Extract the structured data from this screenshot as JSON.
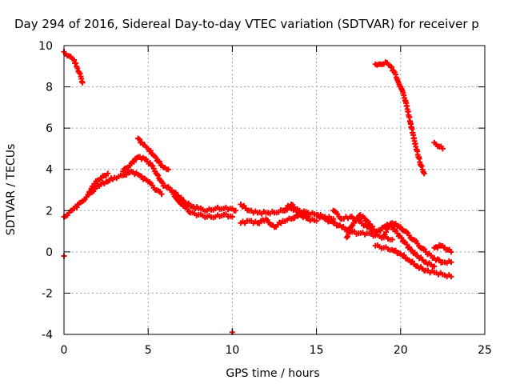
{
  "chart_data": {
    "type": "scatter",
    "title": "Day 294 of 2016, Sidereal Day-to-day VTEC variation (SDTVAR) for receiver p",
    "xlabel": "GPS time / hours",
    "ylabel": "SDTVAR / TECUs",
    "xlim": [
      0,
      25
    ],
    "ylim": [
      -4,
      10
    ],
    "xticks": [
      0,
      5,
      10,
      15,
      20,
      25
    ],
    "yticks": [
      -4,
      -2,
      0,
      2,
      4,
      6,
      8,
      10
    ],
    "grid": true,
    "marker": "plus",
    "color": "#ff0000",
    "series": [
      {
        "name": "sdtvar",
        "segments": [
          [
            [
              0.0,
              9.7
            ],
            [
              0.3,
              9.5
            ],
            [
              0.6,
              9.3
            ],
            [
              0.8,
              8.9
            ],
            [
              1.0,
              8.5
            ],
            [
              1.1,
              8.2
            ]
          ],
          [
            [
              0.0,
              -0.2
            ]
          ],
          [
            [
              0.0,
              1.7
            ],
            [
              0.3,
              1.9
            ],
            [
              0.6,
              2.1
            ],
            [
              1.0,
              2.4
            ],
            [
              1.5,
              2.8
            ],
            [
              2.0,
              3.2
            ],
            [
              2.5,
              3.4
            ],
            [
              3.0,
              3.6
            ],
            [
              3.5,
              3.7
            ],
            [
              4.0,
              3.9
            ],
            [
              4.5,
              3.7
            ],
            [
              5.0,
              3.4
            ],
            [
              5.5,
              3.0
            ],
            [
              5.8,
              2.8
            ]
          ],
          [
            [
              1.5,
              2.9
            ],
            [
              1.8,
              3.3
            ],
            [
              2.1,
              3.5
            ],
            [
              2.4,
              3.7
            ],
            [
              2.6,
              3.8
            ]
          ],
          [
            [
              3.5,
              3.9
            ],
            [
              4.0,
              4.3
            ],
            [
              4.4,
              4.6
            ],
            [
              4.8,
              4.5
            ],
            [
              5.2,
              4.2
            ],
            [
              5.6,
              3.7
            ],
            [
              5.9,
              3.2
            ]
          ],
          [
            [
              4.4,
              5.5
            ],
            [
              4.7,
              5.2
            ],
            [
              5.0,
              5.0
            ],
            [
              5.3,
              4.7
            ],
            [
              5.6,
              4.4
            ],
            [
              5.9,
              4.1
            ],
            [
              6.2,
              4.0
            ]
          ],
          [
            [
              6.0,
              3.2
            ],
            [
              6.4,
              3.0
            ],
            [
              6.8,
              2.7
            ],
            [
              7.2,
              2.4
            ],
            [
              7.6,
              2.2
            ],
            [
              8.0,
              2.1
            ],
            [
              8.5,
              2.0
            ],
            [
              9.0,
              2.1
            ],
            [
              9.5,
              2.1
            ],
            [
              10.0,
              2.1
            ],
            [
              10.2,
              2.0
            ]
          ],
          [
            [
              6.5,
              2.8
            ],
            [
              7.0,
              2.3
            ],
            [
              7.5,
              1.9
            ],
            [
              8.0,
              1.8
            ],
            [
              8.5,
              1.7
            ],
            [
              9.0,
              1.7
            ],
            [
              9.5,
              1.8
            ],
            [
              10.0,
              1.7
            ]
          ],
          [
            [
              10.0,
              -3.9
            ]
          ],
          [
            [
              10.5,
              2.3
            ],
            [
              11.0,
              2.0
            ],
            [
              11.5,
              1.9
            ],
            [
              12.0,
              1.9
            ],
            [
              12.5,
              1.9
            ],
            [
              13.0,
              2.0
            ],
            [
              13.5,
              2.1
            ],
            [
              14.0,
              2.0
            ],
            [
              14.5,
              1.9
            ],
            [
              15.0,
              1.8
            ],
            [
              15.5,
              1.7
            ],
            [
              16.0,
              1.6
            ]
          ],
          [
            [
              10.5,
              1.4
            ],
            [
              11.0,
              1.5
            ],
            [
              11.5,
              1.4
            ],
            [
              12.0,
              1.6
            ],
            [
              12.5,
              1.2
            ],
            [
              13.0,
              1.5
            ],
            [
              13.5,
              1.6
            ],
            [
              14.0,
              1.8
            ],
            [
              14.5,
              1.6
            ],
            [
              15.0,
              1.5
            ]
          ],
          [
            [
              13.0,
              2.0
            ],
            [
              13.5,
              2.3
            ],
            [
              14.0,
              1.9
            ],
            [
              14.5,
              1.7
            ]
          ],
          [
            [
              15.0,
              1.8
            ],
            [
              15.5,
              1.6
            ],
            [
              16.0,
              1.4
            ],
            [
              16.5,
              1.2
            ],
            [
              17.0,
              1.0
            ],
            [
              17.5,
              0.9
            ],
            [
              18.0,
              0.9
            ],
            [
              18.5,
              0.8
            ],
            [
              19.0,
              0.7
            ],
            [
              19.5,
              0.6
            ]
          ],
          [
            [
              16.0,
              2.0
            ],
            [
              16.5,
              1.6
            ],
            [
              17.0,
              1.7
            ],
            [
              17.5,
              1.5
            ],
            [
              18.0,
              1.2
            ],
            [
              18.5,
              1.0
            ]
          ],
          [
            [
              16.8,
              0.7
            ],
            [
              17.2,
              1.4
            ],
            [
              17.6,
              1.8
            ],
            [
              18.0,
              1.5
            ],
            [
              18.4,
              1.1
            ]
          ],
          [
            [
              18.5,
              0.9
            ],
            [
              19.0,
              1.2
            ],
            [
              19.5,
              1.4
            ],
            [
              20.0,
              1.2
            ],
            [
              20.5,
              0.8
            ],
            [
              21.0,
              0.4
            ],
            [
              21.5,
              0.0
            ],
            [
              22.0,
              -0.3
            ],
            [
              22.5,
              -0.5
            ],
            [
              23.0,
              -0.5
            ]
          ],
          [
            [
              18.5,
              0.3
            ],
            [
              19.0,
              0.2
            ],
            [
              19.5,
              0.1
            ],
            [
              20.0,
              -0.1
            ],
            [
              20.5,
              -0.4
            ],
            [
              21.0,
              -0.7
            ],
            [
              21.5,
              -0.9
            ],
            [
              22.0,
              -1.0
            ],
            [
              22.5,
              -1.1
            ],
            [
              23.0,
              -1.2
            ]
          ],
          [
            [
              19.0,
              0.8
            ],
            [
              19.4,
              1.3
            ],
            [
              19.8,
              0.9
            ],
            [
              20.2,
              0.5
            ],
            [
              20.6,
              0.1
            ],
            [
              21.0,
              -0.2
            ],
            [
              21.5,
              -0.5
            ],
            [
              22.0,
              -0.7
            ]
          ],
          [
            [
              22.0,
              0.2
            ],
            [
              22.4,
              0.3
            ],
            [
              22.8,
              0.1
            ],
            [
              23.0,
              0.0
            ]
          ],
          [
            [
              18.5,
              9.1
            ],
            [
              18.8,
              9.1
            ],
            [
              19.1,
              9.2
            ],
            [
              19.4,
              9.0
            ],
            [
              19.7,
              8.6
            ],
            [
              20.0,
              8.0
            ],
            [
              20.3,
              7.3
            ],
            [
              20.6,
              6.2
            ],
            [
              20.9,
              5.1
            ],
            [
              21.2,
              4.2
            ],
            [
              21.4,
              3.8
            ]
          ],
          [
            [
              22.0,
              5.3
            ],
            [
              22.3,
              5.1
            ],
            [
              22.5,
              5.0
            ]
          ]
        ]
      }
    ]
  }
}
